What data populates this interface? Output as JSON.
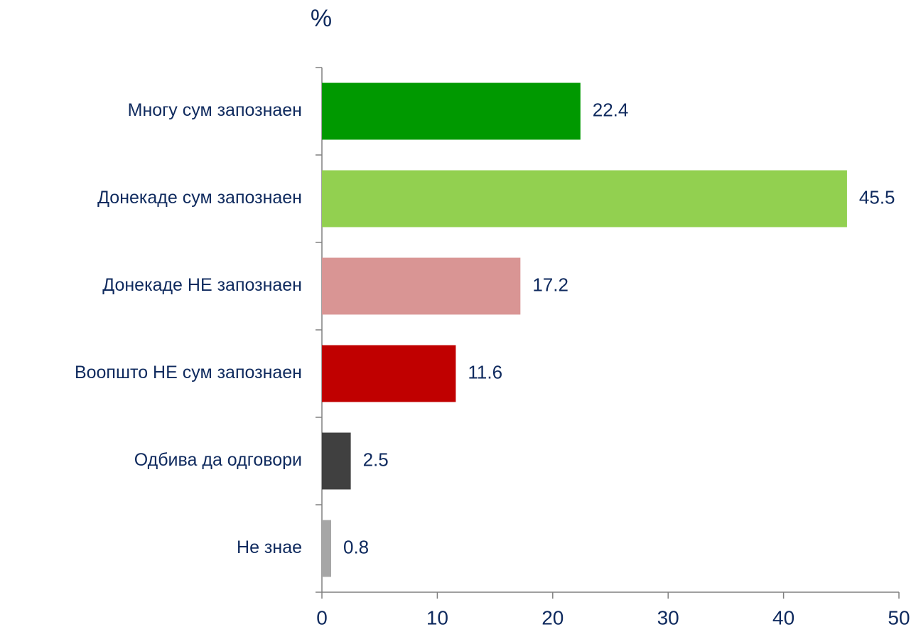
{
  "chart_data": {
    "type": "bar",
    "orientation": "horizontal",
    "title": "%",
    "categories": [
      "Многу сум запознаен",
      "Донекаде сум запознаен",
      "Донекаде НЕ запознаен",
      "Воопшто НЕ сум запознаен",
      "Одбива да одговори",
      "Не знае"
    ],
    "values": [
      22.4,
      45.5,
      17.2,
      11.6,
      2.5,
      0.8
    ],
    "colors": [
      "#009900",
      "#92d050",
      "#d99594",
      "#c00000",
      "#404040",
      "#a6a6a6"
    ],
    "xlim": [
      0,
      50
    ],
    "xticks": [
      0,
      10,
      20,
      30,
      40,
      50
    ],
    "grid": false
  }
}
